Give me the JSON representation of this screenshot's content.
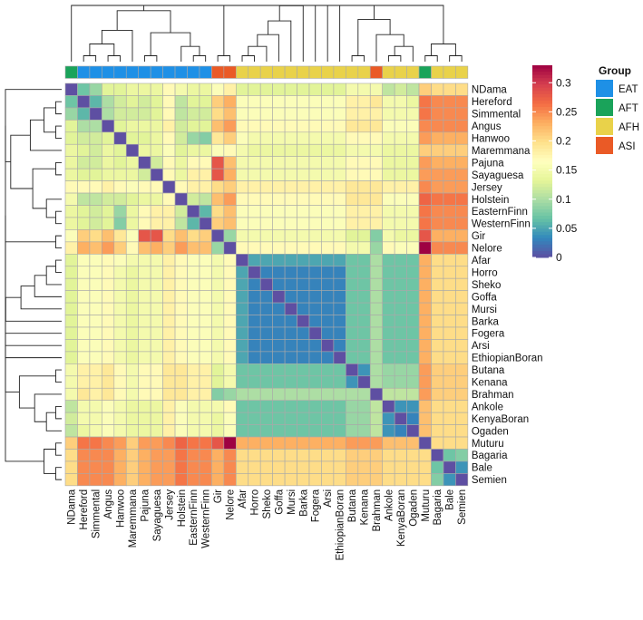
{
  "chart_data": {
    "type": "heatmap",
    "title": "",
    "breeds": [
      "NDama",
      "Hereford",
      "Simmental",
      "Angus",
      "Hanwoo",
      "Maremmana",
      "Pajuna",
      "Sayaguesa",
      "Jersey",
      "Holstein",
      "EasternFinn",
      "WesternFinn",
      "Gir",
      "Nelore",
      "Afar",
      "Horro",
      "Sheko",
      "Goffa",
      "Mursi",
      "Barka",
      "Fogera",
      "Arsi",
      "EthiopianBoran",
      "Butana",
      "Kenana",
      "Brahman",
      "Ankole",
      "KenyaBoran",
      "Ogaden",
      "Muturu",
      "Bagaria",
      "Bale",
      "Semien"
    ],
    "breed_groups": [
      "AFT",
      "EAT",
      "EAT",
      "EAT",
      "EAT",
      "EAT",
      "EAT",
      "EAT",
      "EAT",
      "EAT",
      "EAT",
      "EAT",
      "ASI",
      "ASI",
      "AFH",
      "AFH",
      "AFH",
      "AFH",
      "AFH",
      "AFH",
      "AFH",
      "AFH",
      "AFH",
      "AFH",
      "AFH",
      "ASI",
      "AFH",
      "AFH",
      "AFH",
      "AFT",
      "AFH",
      "AFH",
      "AFH"
    ],
    "groups": [
      {
        "name": "EAT",
        "color": "#1e90e6"
      },
      {
        "name": "AFT",
        "color": "#1aa35a"
      },
      {
        "name": "AFH",
        "color": "#e9d24a"
      },
      {
        "name": "ASI",
        "color": "#ea5a26"
      }
    ],
    "legend_title": "Group",
    "colorbar": {
      "min": 0,
      "max": 0.33,
      "ticks": [
        0,
        0.05,
        0.1,
        0.15,
        0.2,
        0.25,
        0.3
      ],
      "tick_labels": [
        "0",
        "0.05",
        "0.1",
        "0.15",
        "0.2",
        "0.25",
        "0.3"
      ]
    },
    "values": [
      [
        0,
        0.07,
        0.09,
        0.13,
        0.13,
        0.14,
        0.14,
        0.14,
        0.17,
        0.15,
        0.14,
        0.14,
        0.16,
        0.18,
        0.13,
        0.13,
        0.13,
        0.13,
        0.13,
        0.13,
        0.13,
        0.13,
        0.13,
        0.15,
        0.15,
        0.15,
        0.11,
        0.12,
        0.11,
        0.21,
        0.2,
        0.2,
        0.2
      ],
      [
        0.07,
        0,
        0.06,
        0.1,
        0.12,
        0.13,
        0.12,
        0.13,
        0.17,
        0.11,
        0.13,
        0.13,
        0.21,
        0.23,
        0.16,
        0.16,
        0.16,
        0.16,
        0.16,
        0.16,
        0.16,
        0.16,
        0.16,
        0.18,
        0.18,
        0.19,
        0.15,
        0.15,
        0.14,
        0.26,
        0.25,
        0.25,
        0.25
      ],
      [
        0.09,
        0.06,
        0,
        0.1,
        0.12,
        0.12,
        0.12,
        0.13,
        0.17,
        0.11,
        0.12,
        0.12,
        0.2,
        0.22,
        0.16,
        0.16,
        0.16,
        0.16,
        0.16,
        0.16,
        0.16,
        0.16,
        0.16,
        0.18,
        0.18,
        0.18,
        0.15,
        0.15,
        0.15,
        0.26,
        0.25,
        0.25,
        0.25
      ],
      [
        0.13,
        0.1,
        0.1,
        0,
        0.13,
        0.14,
        0.14,
        0.14,
        0.18,
        0.12,
        0.13,
        0.13,
        0.22,
        0.24,
        0.17,
        0.17,
        0.17,
        0.17,
        0.17,
        0.17,
        0.17,
        0.17,
        0.17,
        0.19,
        0.19,
        0.19,
        0.16,
        0.16,
        0.16,
        0.25,
        0.25,
        0.25,
        0.25
      ],
      [
        0.13,
        0.12,
        0.12,
        0.13,
        0,
        0.13,
        0.13,
        0.14,
        0.17,
        0.12,
        0.09,
        0.08,
        0.19,
        0.21,
        0.16,
        0.15,
        0.15,
        0.15,
        0.15,
        0.15,
        0.15,
        0.15,
        0.15,
        0.17,
        0.17,
        0.17,
        0.15,
        0.15,
        0.15,
        0.24,
        0.23,
        0.23,
        0.23
      ],
      [
        0.14,
        0.13,
        0.12,
        0.14,
        0.13,
        0,
        0.14,
        0.14,
        0.16,
        0.13,
        0.14,
        0.14,
        0.16,
        0.17,
        0.15,
        0.14,
        0.14,
        0.14,
        0.14,
        0.14,
        0.14,
        0.14,
        0.14,
        0.15,
        0.15,
        0.15,
        0.14,
        0.14,
        0.14,
        0.21,
        0.21,
        0.21,
        0.21
      ],
      [
        0.14,
        0.12,
        0.12,
        0.14,
        0.13,
        0.14,
        0,
        0.12,
        0.17,
        0.14,
        0.17,
        0.17,
        0.28,
        0.22,
        0.15,
        0.15,
        0.15,
        0.15,
        0.15,
        0.15,
        0.15,
        0.15,
        0.15,
        0.17,
        0.17,
        0.17,
        0.14,
        0.14,
        0.14,
        0.24,
        0.23,
        0.23,
        0.23
      ],
      [
        0.14,
        0.13,
        0.13,
        0.14,
        0.14,
        0.14,
        0.12,
        0,
        0.17,
        0.14,
        0.18,
        0.18,
        0.28,
        0.23,
        0.15,
        0.15,
        0.15,
        0.15,
        0.15,
        0.15,
        0.15,
        0.15,
        0.15,
        0.17,
        0.17,
        0.17,
        0.14,
        0.14,
        0.14,
        0.24,
        0.24,
        0.24,
        0.24
      ],
      [
        0.17,
        0.17,
        0.17,
        0.18,
        0.17,
        0.16,
        0.17,
        0.17,
        0,
        0.17,
        0.18,
        0.18,
        0.2,
        0.21,
        0.18,
        0.18,
        0.18,
        0.18,
        0.18,
        0.18,
        0.18,
        0.18,
        0.18,
        0.19,
        0.19,
        0.19,
        0.18,
        0.18,
        0.18,
        0.25,
        0.24,
        0.24,
        0.24
      ],
      [
        0.15,
        0.11,
        0.11,
        0.12,
        0.12,
        0.13,
        0.14,
        0.14,
        0.17,
        0,
        0.12,
        0.11,
        0.22,
        0.24,
        0.17,
        0.17,
        0.17,
        0.17,
        0.17,
        0.17,
        0.17,
        0.17,
        0.17,
        0.19,
        0.19,
        0.19,
        0.16,
        0.16,
        0.16,
        0.27,
        0.26,
        0.26,
        0.26
      ],
      [
        0.14,
        0.13,
        0.12,
        0.13,
        0.09,
        0.14,
        0.17,
        0.18,
        0.18,
        0.12,
        0,
        0.06,
        0.2,
        0.22,
        0.16,
        0.16,
        0.16,
        0.16,
        0.16,
        0.16,
        0.16,
        0.16,
        0.16,
        0.18,
        0.18,
        0.18,
        0.15,
        0.15,
        0.15,
        0.26,
        0.25,
        0.25,
        0.25
      ],
      [
        0.14,
        0.13,
        0.12,
        0.13,
        0.08,
        0.14,
        0.17,
        0.18,
        0.18,
        0.11,
        0.06,
        0,
        0.21,
        0.22,
        0.16,
        0.16,
        0.16,
        0.16,
        0.16,
        0.16,
        0.16,
        0.16,
        0.16,
        0.18,
        0.18,
        0.18,
        0.15,
        0.15,
        0.15,
        0.26,
        0.25,
        0.25,
        0.25
      ],
      [
        0.16,
        0.21,
        0.2,
        0.22,
        0.19,
        0.16,
        0.28,
        0.28,
        0.2,
        0.22,
        0.2,
        0.21,
        0,
        0.09,
        0.15,
        0.15,
        0.15,
        0.15,
        0.15,
        0.15,
        0.15,
        0.15,
        0.15,
        0.13,
        0.13,
        0.08,
        0.15,
        0.14,
        0.14,
        0.28,
        0.23,
        0.23,
        0.23
      ],
      [
        0.18,
        0.23,
        0.22,
        0.24,
        0.21,
        0.17,
        0.22,
        0.23,
        0.21,
        0.24,
        0.22,
        0.22,
        0.09,
        0,
        0.17,
        0.17,
        0.17,
        0.17,
        0.17,
        0.17,
        0.17,
        0.17,
        0.17,
        0.15,
        0.15,
        0.09,
        0.17,
        0.16,
        0.16,
        0.33,
        0.25,
        0.25,
        0.25
      ],
      [
        0.13,
        0.16,
        0.16,
        0.17,
        0.16,
        0.15,
        0.15,
        0.15,
        0.18,
        0.17,
        0.16,
        0.16,
        0.15,
        0.17,
        0,
        0.05,
        0.05,
        0.05,
        0.05,
        0.05,
        0.05,
        0.05,
        0.05,
        0.07,
        0.07,
        0.1,
        0.07,
        0.07,
        0.07,
        0.23,
        0.2,
        0.2,
        0.2
      ],
      [
        0.13,
        0.16,
        0.16,
        0.17,
        0.15,
        0.14,
        0.15,
        0.15,
        0.18,
        0.17,
        0.16,
        0.16,
        0.15,
        0.17,
        0.05,
        0,
        0.03,
        0.03,
        0.03,
        0.03,
        0.03,
        0.03,
        0.03,
        0.07,
        0.07,
        0.1,
        0.07,
        0.07,
        0.07,
        0.23,
        0.2,
        0.2,
        0.2
      ],
      [
        0.13,
        0.16,
        0.16,
        0.17,
        0.15,
        0.14,
        0.15,
        0.15,
        0.18,
        0.17,
        0.16,
        0.16,
        0.15,
        0.17,
        0.05,
        0.03,
        0,
        0.03,
        0.03,
        0.03,
        0.03,
        0.03,
        0.03,
        0.07,
        0.07,
        0.1,
        0.07,
        0.07,
        0.07,
        0.23,
        0.2,
        0.2,
        0.2
      ],
      [
        0.13,
        0.16,
        0.16,
        0.17,
        0.15,
        0.14,
        0.15,
        0.15,
        0.18,
        0.17,
        0.16,
        0.16,
        0.15,
        0.17,
        0.05,
        0.03,
        0.03,
        0,
        0.03,
        0.03,
        0.03,
        0.03,
        0.03,
        0.07,
        0.07,
        0.1,
        0.07,
        0.07,
        0.07,
        0.23,
        0.2,
        0.2,
        0.2
      ],
      [
        0.13,
        0.16,
        0.16,
        0.17,
        0.15,
        0.14,
        0.15,
        0.15,
        0.18,
        0.17,
        0.16,
        0.16,
        0.15,
        0.17,
        0.05,
        0.03,
        0.03,
        0.03,
        0,
        0.03,
        0.03,
        0.03,
        0.03,
        0.07,
        0.07,
        0.1,
        0.07,
        0.07,
        0.07,
        0.23,
        0.2,
        0.2,
        0.2
      ],
      [
        0.13,
        0.16,
        0.16,
        0.17,
        0.15,
        0.14,
        0.15,
        0.15,
        0.18,
        0.17,
        0.16,
        0.16,
        0.15,
        0.17,
        0.05,
        0.03,
        0.03,
        0.03,
        0.03,
        0,
        0.03,
        0.03,
        0.03,
        0.07,
        0.07,
        0.1,
        0.07,
        0.07,
        0.07,
        0.23,
        0.2,
        0.2,
        0.2
      ],
      [
        0.13,
        0.16,
        0.16,
        0.17,
        0.15,
        0.14,
        0.15,
        0.15,
        0.18,
        0.17,
        0.16,
        0.16,
        0.15,
        0.17,
        0.05,
        0.03,
        0.03,
        0.03,
        0.03,
        0.03,
        0,
        0.03,
        0.03,
        0.07,
        0.07,
        0.1,
        0.07,
        0.07,
        0.07,
        0.23,
        0.2,
        0.2,
        0.2
      ],
      [
        0.13,
        0.16,
        0.16,
        0.17,
        0.15,
        0.14,
        0.15,
        0.15,
        0.18,
        0.17,
        0.16,
        0.16,
        0.15,
        0.17,
        0.05,
        0.03,
        0.03,
        0.03,
        0.03,
        0.03,
        0.03,
        0,
        0.03,
        0.07,
        0.07,
        0.1,
        0.07,
        0.07,
        0.07,
        0.23,
        0.2,
        0.2,
        0.2
      ],
      [
        0.13,
        0.16,
        0.16,
        0.17,
        0.15,
        0.14,
        0.15,
        0.15,
        0.18,
        0.17,
        0.16,
        0.16,
        0.15,
        0.17,
        0.05,
        0.03,
        0.03,
        0.03,
        0.03,
        0.03,
        0.03,
        0.03,
        0,
        0.07,
        0.07,
        0.1,
        0.07,
        0.07,
        0.07,
        0.23,
        0.2,
        0.2,
        0.2
      ],
      [
        0.15,
        0.18,
        0.18,
        0.19,
        0.17,
        0.15,
        0.17,
        0.17,
        0.19,
        0.19,
        0.18,
        0.18,
        0.13,
        0.15,
        0.07,
        0.07,
        0.07,
        0.07,
        0.07,
        0.07,
        0.07,
        0.07,
        0.07,
        0,
        0.04,
        0.1,
        0.09,
        0.09,
        0.09,
        0.24,
        0.21,
        0.21,
        0.21
      ],
      [
        0.15,
        0.18,
        0.18,
        0.19,
        0.17,
        0.15,
        0.17,
        0.17,
        0.19,
        0.19,
        0.18,
        0.18,
        0.13,
        0.15,
        0.07,
        0.07,
        0.07,
        0.07,
        0.07,
        0.07,
        0.07,
        0.07,
        0.07,
        0.04,
        0,
        0.1,
        0.09,
        0.09,
        0.09,
        0.24,
        0.21,
        0.21,
        0.21
      ],
      [
        0.15,
        0.19,
        0.18,
        0.19,
        0.17,
        0.15,
        0.17,
        0.17,
        0.19,
        0.19,
        0.18,
        0.18,
        0.08,
        0.09,
        0.1,
        0.1,
        0.1,
        0.1,
        0.1,
        0.1,
        0.1,
        0.1,
        0.1,
        0.1,
        0.1,
        0,
        0.11,
        0.11,
        0.11,
        0.24,
        0.21,
        0.21,
        0.21
      ],
      [
        0.11,
        0.15,
        0.15,
        0.16,
        0.15,
        0.14,
        0.14,
        0.14,
        0.18,
        0.16,
        0.15,
        0.15,
        0.15,
        0.17,
        0.07,
        0.07,
        0.07,
        0.07,
        0.07,
        0.07,
        0.07,
        0.07,
        0.07,
        0.09,
        0.09,
        0.11,
        0,
        0.04,
        0.04,
        0.22,
        0.2,
        0.2,
        0.2
      ],
      [
        0.12,
        0.15,
        0.15,
        0.16,
        0.15,
        0.14,
        0.14,
        0.14,
        0.18,
        0.16,
        0.15,
        0.15,
        0.14,
        0.16,
        0.07,
        0.07,
        0.07,
        0.07,
        0.07,
        0.07,
        0.07,
        0.07,
        0.07,
        0.09,
        0.09,
        0.11,
        0.04,
        0,
        0.03,
        0.22,
        0.2,
        0.2,
        0.2
      ],
      [
        0.11,
        0.14,
        0.15,
        0.16,
        0.15,
        0.14,
        0.14,
        0.14,
        0.18,
        0.16,
        0.15,
        0.15,
        0.14,
        0.16,
        0.07,
        0.07,
        0.07,
        0.07,
        0.07,
        0.07,
        0.07,
        0.07,
        0.07,
        0.09,
        0.09,
        0.11,
        0.04,
        0.03,
        0,
        0.22,
        0.2,
        0.2,
        0.2
      ],
      [
        0.21,
        0.26,
        0.26,
        0.25,
        0.24,
        0.21,
        0.24,
        0.24,
        0.25,
        0.27,
        0.26,
        0.26,
        0.28,
        0.33,
        0.23,
        0.23,
        0.23,
        0.23,
        0.23,
        0.23,
        0.23,
        0.23,
        0.23,
        0.24,
        0.24,
        0.24,
        0.22,
        0.22,
        0.22,
        0,
        0.2,
        0.2,
        0.2
      ],
      [
        0.2,
        0.25,
        0.25,
        0.25,
        0.23,
        0.21,
        0.23,
        0.24,
        0.24,
        0.26,
        0.25,
        0.25,
        0.23,
        0.25,
        0.2,
        0.2,
        0.2,
        0.2,
        0.2,
        0.2,
        0.2,
        0.2,
        0.2,
        0.21,
        0.21,
        0.21,
        0.2,
        0.2,
        0.2,
        0.2,
        0,
        0.07,
        0.08
      ],
      [
        0.2,
        0.25,
        0.25,
        0.25,
        0.23,
        0.21,
        0.23,
        0.24,
        0.24,
        0.26,
        0.25,
        0.25,
        0.23,
        0.25,
        0.2,
        0.2,
        0.2,
        0.2,
        0.2,
        0.2,
        0.2,
        0.2,
        0.2,
        0.21,
        0.21,
        0.21,
        0.2,
        0.2,
        0.2,
        0.2,
        0.07,
        0,
        0.04
      ],
      [
        0.2,
        0.25,
        0.25,
        0.25,
        0.23,
        0.21,
        0.23,
        0.24,
        0.24,
        0.26,
        0.25,
        0.25,
        0.23,
        0.25,
        0.2,
        0.2,
        0.2,
        0.2,
        0.2,
        0.2,
        0.2,
        0.2,
        0.2,
        0.21,
        0.21,
        0.21,
        0.2,
        0.2,
        0.2,
        0.2,
        0.08,
        0.04,
        0
      ]
    ],
    "dendrogram": [
      [
        29,
        30
      ],
      [
        31,
        32
      ],
      [
        30,
        31
      ],
      [
        26,
        27
      ],
      [
        27,
        28
      ],
      [
        23,
        24
      ],
      [
        25,
        26
      ],
      [
        23,
        25
      ],
      [
        14,
        15
      ],
      [
        15,
        16
      ],
      [
        16,
        17
      ],
      [
        17,
        18
      ],
      [
        18,
        19
      ],
      [
        19,
        20
      ],
      [
        20,
        21
      ],
      [
        21,
        22
      ],
      [
        14,
        23
      ],
      [
        12,
        13
      ],
      [
        12,
        14
      ],
      [
        10,
        11
      ],
      [
        9,
        10
      ],
      [
        6,
        7
      ],
      [
        3,
        4
      ],
      [
        1,
        2
      ],
      [
        1,
        3
      ],
      [
        1,
        5
      ],
      [
        6,
        9
      ],
      [
        1,
        6
      ],
      [
        0,
        1
      ],
      [
        0,
        12
      ],
      [
        0,
        29
      ]
    ]
  }
}
